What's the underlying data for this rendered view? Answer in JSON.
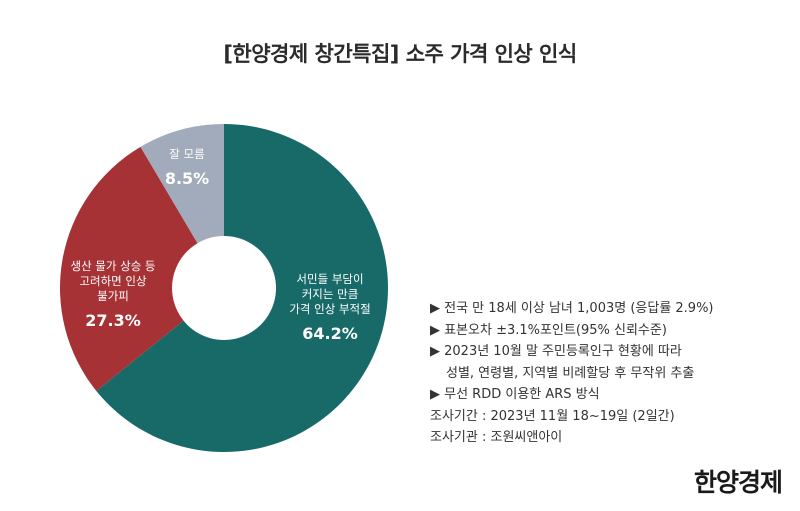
{
  "header": {
    "title": "[한양경제 창간특집] 소주 가격 인상 인식"
  },
  "chart_data": {
    "type": "pie",
    "donut": true,
    "title": "[한양경제 창간특집] 소주 가격 인상 인식",
    "slices": [
      {
        "label_lines": [
          "서민들 부담이",
          "커지는 만큼",
          "가격 인상 부적절"
        ],
        "value": 64.2,
        "display": "64.2%",
        "color": "#176a68"
      },
      {
        "label_lines": [
          "생산 물가 상승 등",
          "고려하면 인상",
          "불가피"
        ],
        "value": 27.3,
        "display": "27.3%",
        "color": "#a63236"
      },
      {
        "label_lines": [
          "잘 모름"
        ],
        "value": 8.5,
        "display": "8.5%",
        "color": "#a2abbb"
      }
    ]
  },
  "notes": {
    "lines": [
      "▶ 전국 만 18세 이상 남녀 1,003명 (응답률 2.9%)",
      "▶ 표본오차 ±3.1%포인트(95% 신뢰수준)",
      "▶ 2023년 10월 말 주민등록인구 현황에 따라",
      "성별, 연령별, 지역별 비례할당 후 무작위 추출",
      "▶ 무선 RDD 이용한 ARS 방식",
      "조사기간 : 2023년 11월 18~19일 (2일간)",
      "조사기관 : 조원씨앤아이"
    ]
  },
  "brand": {
    "logo_text": "한양경제"
  }
}
